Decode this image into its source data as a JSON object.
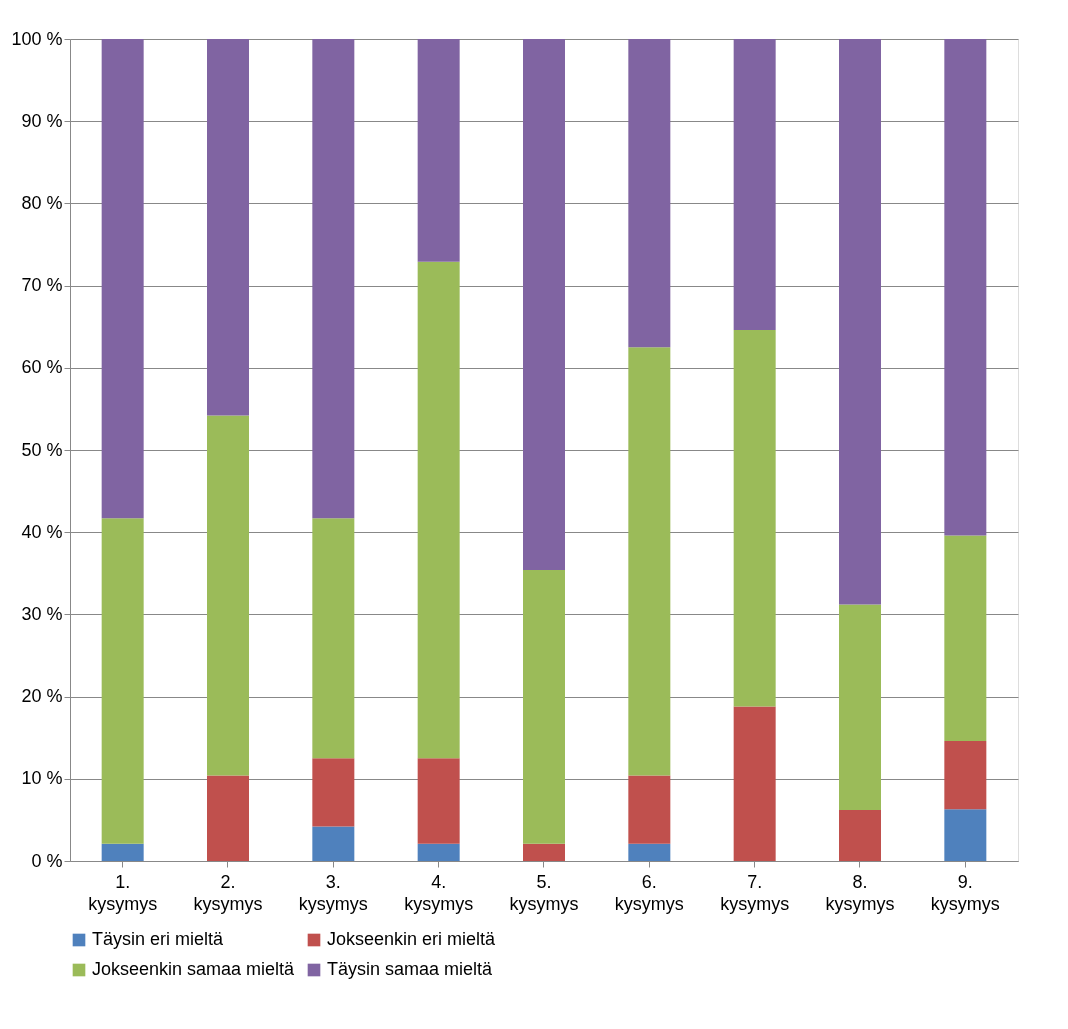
{
  "chart_data": {
    "type": "bar",
    "stacked": true,
    "categories": [
      "1. kysymys",
      "2. kysymys",
      "3. kysymys",
      "4. kysymys",
      "5. kysymys",
      "6. kysymys",
      "7. kysymys",
      "8. kysymys",
      "9. kysymys"
    ],
    "series": [
      {
        "name": "Täysin eri mieltä",
        "color": "#4f81bd",
        "values": [
          2.1,
          0,
          4.2,
          2.1,
          0,
          2.1,
          0,
          0,
          6.3
        ]
      },
      {
        "name": "Jokseenkin eri mieltä",
        "color": "#c0504d",
        "values": [
          0,
          10.4,
          8.3,
          10.4,
          2.1,
          8.3,
          18.8,
          6.2,
          8.3
        ]
      },
      {
        "name": "Jokseenkin samaa mieltä",
        "color": "#9bbb59",
        "values": [
          39.6,
          43.8,
          29.2,
          60.4,
          33.3,
          52.1,
          45.8,
          25,
          25
        ]
      },
      {
        "name": "Täysin samaa mieltä",
        "color": "#8064a2",
        "values": [
          58.3,
          45.8,
          58.3,
          27.1,
          64.6,
          37.5,
          35.4,
          68.8,
          60.4
        ]
      }
    ],
    "ylim": [
      0,
      100
    ],
    "yticks": [
      {
        "value": 0,
        "label": "0 %"
      },
      {
        "value": 10,
        "label": "10 %"
      },
      {
        "value": 20,
        "label": "20 %"
      },
      {
        "value": 30,
        "label": "30 %"
      },
      {
        "value": 40,
        "label": "40 %"
      },
      {
        "value": 50,
        "label": "50 %"
      },
      {
        "value": 60,
        "label": "60 %"
      },
      {
        "value": 70,
        "label": "70 %"
      },
      {
        "value": 80,
        "label": "80 %"
      },
      {
        "value": 90,
        "label": "90 %"
      },
      {
        "value": 100,
        "label": "100 %"
      }
    ],
    "grid": "y",
    "legend": "bottom"
  }
}
